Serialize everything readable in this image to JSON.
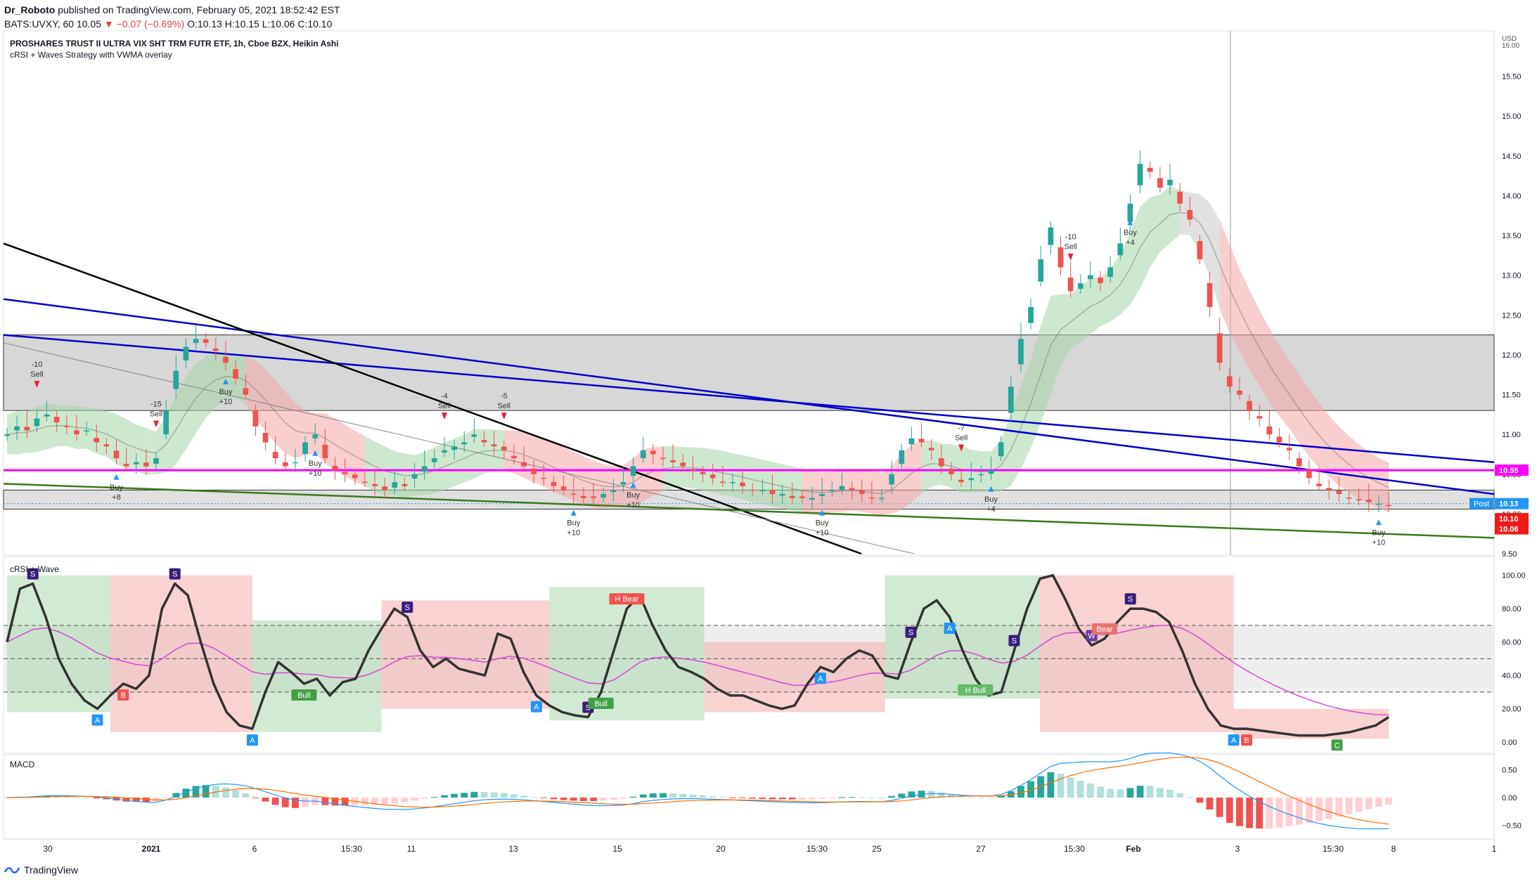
{
  "header": {
    "author": "Dr_Roboto",
    "published": "published on TradingView.com, February 05, 2021 18:52:42 EST",
    "symbol_line_a": "BATS:UVXY, 60",
    "last": "10.05",
    "change": "−0.07 (−0.69%)",
    "ohlc_o": "O:10.13",
    "ohlc_h": "H:10.15",
    "ohlc_l": "L:10.06",
    "ohlc_c": "C:10.10"
  },
  "chart_title": "PROSHARES TRUST II ULTRA VIX SHT TRM FUTR ETF, 1h, Cboe BZX, Heikin Ashi",
  "chart_subtitle": "cRSI + Waves Strategy with VWMA overlay",
  "colors": {
    "bull": "#26a69a",
    "bear": "#ef5350",
    "magenta": "#ff00ff",
    "blue_line": "#0000cc",
    "green_line": "#3a7a1f",
    "black_line": "#000000",
    "band_green": "#a5d6a7",
    "band_red": "#f4a6a6",
    "band_grey": "#c8c8c8"
  },
  "footer": {
    "brand": "TradingView"
  },
  "chart_data": [
    {
      "type": "candlestick",
      "panel": "price",
      "y_axis": {
        "range": [
          9.5,
          16.0
        ],
        "ticks": [
          "15.50",
          "15.00",
          "14.50",
          "14.00",
          "13.50",
          "13.00",
          "12.50",
          "12.00",
          "11.50",
          "11.00",
          "10.50",
          "10.00",
          "9.50"
        ],
        "top_label": "USD",
        "top_value": "16.00"
      },
      "x_axis": {
        "ticks": [
          "30",
          "2021",
          "6",
          "15:30",
          "11",
          "13",
          "15",
          "20",
          "15:30",
          "25",
          "27",
          "15:30",
          "Feb",
          "3",
          "15:30",
          "8",
          "1"
        ]
      },
      "price_labels": [
        {
          "text": "10.55",
          "color": "#ff00ff"
        },
        {
          "text": "10.13",
          "prefix": "Post",
          "color": "#2196f3"
        },
        {
          "text": "10.10",
          "color": "#ef1b1b"
        },
        {
          "text": "10.06",
          "color": "#ef1b1b"
        }
      ],
      "levels": {
        "magenta": 10.55,
        "box_upper": [
          11.3,
          12.25
        ],
        "box_lower": [
          10.06,
          10.3
        ]
      },
      "closes": [
        11.0,
        11.1,
        11.05,
        11.2,
        11.25,
        11.15,
        11.1,
        11.0,
        11.05,
        10.9,
        10.85,
        10.7,
        10.6,
        10.65,
        10.6,
        10.7,
        11.3,
        11.8,
        12.1,
        12.2,
        12.15,
        12.05,
        11.9,
        11.7,
        11.5,
        11.1,
        10.9,
        10.7,
        10.6,
        10.65,
        10.9,
        11.0,
        10.7,
        10.55,
        10.5,
        10.45,
        10.4,
        10.35,
        10.3,
        10.4,
        10.35,
        10.5,
        10.6,
        10.7,
        10.8,
        10.85,
        10.9,
        11.0,
        10.9,
        10.85,
        10.8,
        10.7,
        10.6,
        10.5,
        10.45,
        10.35,
        10.3,
        10.25,
        10.2,
        10.2,
        10.25,
        10.3,
        10.4,
        10.6,
        10.8,
        10.75,
        10.7,
        10.65,
        10.6,
        10.55,
        10.5,
        10.45,
        10.4,
        10.4,
        10.35,
        10.3,
        10.3,
        10.25,
        10.25,
        10.2,
        10.2,
        10.2,
        10.25,
        10.3,
        10.35,
        10.3,
        10.25,
        10.2,
        10.2,
        10.5,
        10.8,
        10.95,
        10.9,
        10.8,
        10.6,
        10.5,
        10.4,
        10.45,
        10.5,
        10.55,
        10.9,
        11.6,
        12.2,
        12.6,
        13.2,
        13.6,
        13.1,
        12.8,
        12.9,
        13.0,
        12.9,
        13.1,
        13.4,
        13.9,
        14.4,
        14.3,
        14.1,
        14.2,
        13.9,
        13.7,
        13.2,
        12.6,
        11.9,
        11.6,
        11.5,
        11.3,
        11.2,
        11.0,
        10.9,
        10.8,
        10.6,
        10.45,
        10.35,
        10.3,
        10.25,
        10.2,
        10.17,
        10.15,
        10.13,
        10.1
      ],
      "signals": [
        {
          "text": "Sell",
          "qty": "-10"
        },
        {
          "text": "Buy",
          "qty": "+8"
        },
        {
          "text": "Sell",
          "qty": "-15"
        },
        {
          "text": "Buy",
          "qty": "+10"
        },
        {
          "text": "Buy",
          "qty": "+10"
        },
        {
          "text": "Sell",
          "qty": "-4"
        },
        {
          "text": "Buy",
          "qty": "+10"
        },
        {
          "text": "Sell",
          "qty": "-5"
        },
        {
          "text": "Buy",
          "qty": "+10"
        },
        {
          "text": "Buy",
          "qty": "+10"
        },
        {
          "text": "Sell",
          "qty": "-7"
        },
        {
          "text": "Buy",
          "qty": "+4"
        },
        {
          "text": "Sell",
          "qty": "-10"
        },
        {
          "text": "Buy",
          "qty": "+4"
        },
        {
          "text": "Buy",
          "qty": "+10"
        }
      ]
    },
    {
      "type": "line",
      "panel": "crsi",
      "title": "cRSI + Wave",
      "y_axis": {
        "ticks": [
          "100.00",
          "80.00",
          "60.00",
          "40.00",
          "20.00",
          "0.00"
        ],
        "range": [
          -5,
          110
        ]
      },
      "levels": [
        70,
        50,
        30
      ],
      "crsi": [
        60,
        92,
        95,
        75,
        50,
        35,
        25,
        20,
        28,
        35,
        32,
        40,
        80,
        95,
        88,
        60,
        35,
        18,
        10,
        8,
        30,
        48,
        42,
        35,
        38,
        28,
        36,
        38,
        55,
        68,
        80,
        75,
        55,
        45,
        50,
        44,
        42,
        40,
        65,
        62,
        42,
        28,
        22,
        18,
        16,
        15,
        30,
        55,
        80,
        88,
        70,
        55,
        45,
        42,
        38,
        32,
        28,
        28,
        25,
        22,
        20,
        22,
        35,
        45,
        42,
        50,
        55,
        52,
        40,
        38,
        60,
        80,
        85,
        75,
        55,
        38,
        28,
        30,
        55,
        80,
        98,
        100,
        85,
        68,
        58,
        62,
        72,
        80,
        80,
        78,
        72,
        55,
        35,
        20,
        10,
        8,
        8,
        7,
        6,
        5,
        4,
        4,
        4,
        5,
        6,
        8,
        10,
        15
      ],
      "labels": [
        "S",
        "S",
        "S",
        "S",
        "S",
        "S",
        "S",
        "W",
        "A",
        "A",
        "A",
        "A",
        "A",
        "A",
        "A",
        "B",
        "B",
        "C",
        "Bull",
        "Bull",
        "H Bull",
        "H Bear",
        "Bear"
      ]
    },
    {
      "type": "bar",
      "panel": "macd",
      "title": "MACD",
      "y_axis": {
        "ticks": [
          "0.50",
          "0.00",
          "−0.50"
        ],
        "range": [
          -0.7,
          0.7
        ]
      }
    }
  ]
}
